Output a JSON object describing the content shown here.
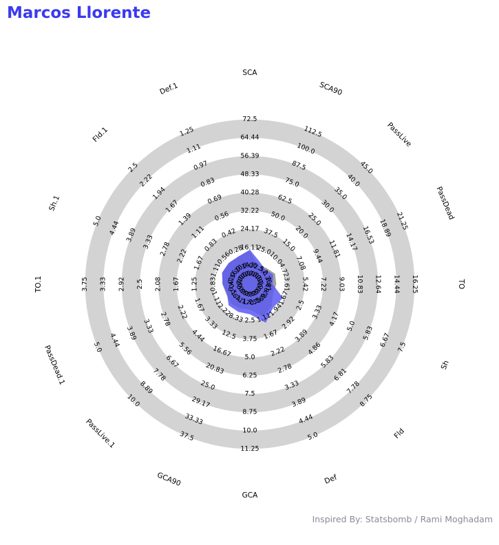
{
  "title": "Marcos Llorente",
  "credit": "Inspired By: Statsbomb / Rami Moghadam",
  "colors": {
    "title": "#3a3af0",
    "ring": "#d3d3d3",
    "player_fill": "#5b5bf2",
    "comparison_fill": "#808080",
    "credit": "#8a8a9a"
  },
  "chart_data": {
    "type": "radar",
    "ring_count": 8,
    "params": [
      {
        "name": "SCA",
        "ticks": [
          "8.06",
          "16.11",
          "24.17",
          "32.22",
          "40.28",
          "48.33",
          "56.39",
          "64.44",
          "72.5"
        ]
      },
      {
        "name": "SCA90",
        "ticks": [
          "12.5",
          "25.0",
          "37.5",
          "50.0",
          "62.5",
          "75.0",
          "87.5",
          "100.0",
          "112.5"
        ]
      },
      {
        "name": "PassLive",
        "ticks": [
          "5.0",
          "10.0",
          "15.0",
          "20.0",
          "25.0",
          "30.0",
          "35.0",
          "40.0",
          "45.0"
        ]
      },
      {
        "name": "PassDead",
        "ticks": [
          "2.36",
          "4.72",
          "7.08",
          "9.44",
          "11.81",
          "14.17",
          "16.53",
          "18.89",
          "21.25"
        ]
      },
      {
        "name": "TO",
        "ticks": [
          "1.81",
          "3.61",
          "5.42",
          "7.22",
          "9.03",
          "10.83",
          "12.64",
          "14.44",
          "16.25"
        ]
      },
      {
        "name": "Sh",
        "ticks": [
          "0.83",
          "1.67",
          "2.5",
          "3.33",
          "4.17",
          "5.0",
          "5.83",
          "6.67",
          "7.5"
        ]
      },
      {
        "name": "Fld",
        "ticks": [
          "0.97",
          "1.94",
          "2.92",
          "3.89",
          "4.86",
          "5.83",
          "6.81",
          "7.78",
          "8.75"
        ]
      },
      {
        "name": "Def",
        "ticks": [
          "0.56",
          "1.11",
          "1.67",
          "2.22",
          "2.78",
          "3.33",
          "3.89",
          "4.44",
          "5.0"
        ]
      },
      {
        "name": "GCA",
        "ticks": [
          "1.25",
          "2.5",
          "3.75",
          "5.0",
          "6.25",
          "7.5",
          "8.75",
          "10.0",
          "11.25"
        ]
      },
      {
        "name": "GCA90",
        "ticks": [
          "4.17",
          "8.33",
          "12.5",
          "16.67",
          "20.83",
          "25.0",
          "29.17",
          "33.33",
          "37.5"
        ]
      },
      {
        "name": "PassLive.1",
        "ticks": [
          "1.11",
          "2.22",
          "3.33",
          "4.44",
          "5.56",
          "6.67",
          "7.78",
          "8.89",
          "10.0"
        ]
      },
      {
        "name": "PassDead.1",
        "ticks": [
          "0.56",
          "1.11",
          "1.67",
          "2.22",
          "2.78",
          "3.33",
          "3.89",
          "4.44",
          "5.0"
        ]
      },
      {
        "name": "TO.1",
        "ticks": [
          "0.42",
          "0.83",
          "1.25",
          "1.67",
          "2.08",
          "2.5",
          "2.92",
          "3.33",
          "3.75"
        ]
      },
      {
        "name": "Sh.1",
        "ticks": [
          "0.56",
          "1.11",
          "1.67",
          "2.22",
          "2.78",
          "3.33",
          "3.89",
          "4.44",
          "5.0"
        ]
      },
      {
        "name": "Fld.1",
        "ticks": [
          "0.28",
          "0.56",
          "0.83",
          "1.11",
          "1.39",
          "1.67",
          "1.94",
          "2.22",
          "2.5"
        ]
      },
      {
        "name": "Def.1",
        "ticks": [
          "0.14",
          "0.28",
          "0.42",
          "0.56",
          "0.69",
          "0.83",
          "0.97",
          "1.11",
          "1.25"
        ]
      }
    ],
    "inner_ticks": [
      "0.0",
      "0.0",
      "0.0",
      "0.0",
      "0.0",
      "0.0",
      "0.0",
      "0.0",
      "0.0",
      "0.0",
      "0.0",
      "0.0",
      "0.0",
      "0.0",
      "0.0",
      "0.0"
    ],
    "series": [
      {
        "values": [
          8.0,
          5.0,
          0.9,
          1.0,
          0.5,
          0.9,
          0.88,
          0.8,
          0.9,
          3.0,
          0.8,
          0.22,
          0.23,
          0.4,
          0.2,
          0.1
        ],
        "color": "#5b5bf2"
      },
      {
        "values": [
          7.5,
          1.5,
          1.5,
          1.3,
          0.9,
          0.35,
          0.75,
          0.58,
          0.55,
          2.0,
          0.6,
          0.25,
          0.23,
          0.4,
          0.2,
          0.1
        ],
        "color": "#808080"
      }
    ]
  }
}
